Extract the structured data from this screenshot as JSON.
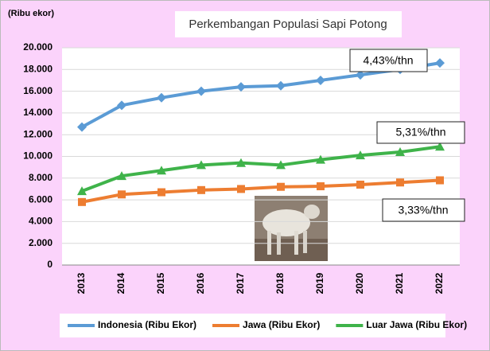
{
  "chart_data": {
    "type": "line",
    "title": "Perkembangan Populasi Sapi Potong",
    "y_unit_label": "(Ribu ekor)",
    "annotations": [
      "4,43%/thn",
      "5,31%/thn",
      "3,33%/thn"
    ],
    "categories": [
      "2013",
      "2014",
      "2015",
      "2016",
      "2017",
      "2018",
      "2019",
      "2020",
      "2021",
      "2022"
    ],
    "series": [
      {
        "name": "Indonesia (Ribu Ekor)",
        "color": "#5b9bd5",
        "marker": "diamond",
        "values": [
          12700,
          14700,
          15400,
          16000,
          16400,
          16500,
          17000,
          17500,
          18000,
          18600
        ]
      },
      {
        "name": "Jawa (Ribu Ekor)",
        "color": "#ed7d31",
        "marker": "square",
        "values": [
          5800,
          6500,
          6700,
          6900,
          7000,
          7200,
          7250,
          7400,
          7600,
          7800
        ]
      },
      {
        "name": "Luar Jawa (Ribu Ekor)",
        "color": "#3fb34a",
        "marker": "triangle",
        "values": [
          6800,
          8200,
          8700,
          9200,
          9400,
          9200,
          9700,
          10100,
          10400,
          10900
        ]
      }
    ],
    "ylim": [
      0,
      20000
    ],
    "yticks": [
      0,
      {
        "value": 2000,
        "label": "2.000"
      },
      {
        "value": 4000,
        "label": "4.000"
      },
      {
        "value": 6000,
        "label": "6.000"
      },
      {
        "value": 8000,
        "label": "8.000"
      },
      {
        "value": 10000,
        "label": "10.000"
      },
      {
        "value": 12000,
        "label": "12.000"
      },
      {
        "value": 14000,
        "label": "14.000"
      },
      {
        "value": 16000,
        "label": "16.000"
      },
      {
        "value": 18000,
        "label": "18.000"
      },
      {
        "value": 20000,
        "label": "20.000"
      }
    ],
    "grid": true
  }
}
